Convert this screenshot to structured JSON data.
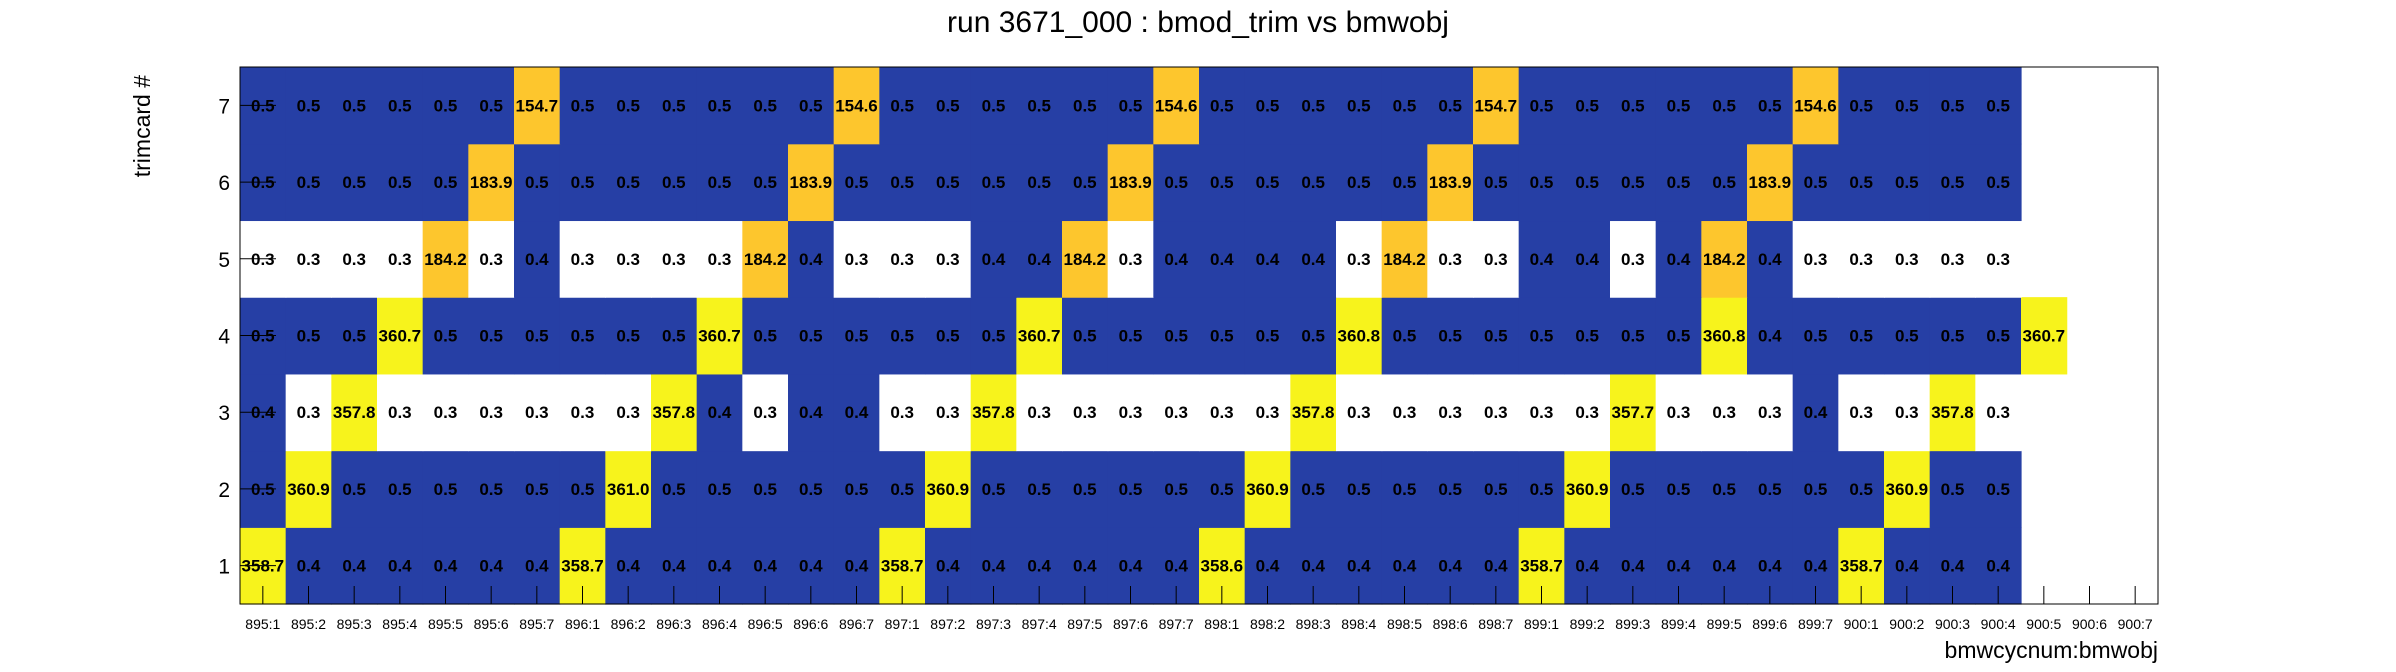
{
  "chart_data": {
    "type": "heatmap",
    "title": "run 3671_000 : bmod_trim vs bmwobj",
    "xlabel": "bmwcycnum:bmwobj",
    "ylabel": "trimcard #",
    "x_categories": [
      "895:1",
      "895:2",
      "895:3",
      "895:4",
      "895:5",
      "895:6",
      "895:7",
      "896:1",
      "896:2",
      "896:3",
      "896:4",
      "896:5",
      "896:6",
      "896:7",
      "897:1",
      "897:2",
      "897:3",
      "897:4",
      "897:5",
      "897:6",
      "897:7",
      "898:1",
      "898:2",
      "898:3",
      "898:4",
      "898:5",
      "898:6",
      "898:7",
      "899:1",
      "899:2",
      "899:3",
      "899:4",
      "899:5",
      "899:6",
      "899:7",
      "900:1",
      "900:2",
      "900:3",
      "900:4",
      "900:5",
      "900:6",
      "900:7"
    ],
    "y_categories": [
      "1",
      "2",
      "3",
      "4",
      "5",
      "6",
      "7"
    ],
    "values": [
      [
        358.7,
        0.4,
        0.4,
        0.4,
        0.4,
        0.4,
        0.4,
        358.7,
        0.4,
        0.4,
        0.4,
        0.4,
        0.4,
        0.4,
        358.7,
        0.4,
        0.4,
        0.4,
        0.4,
        0.4,
        0.4,
        358.6,
        0.4,
        0.4,
        0.4,
        0.4,
        0.4,
        0.4,
        358.7,
        0.4,
        0.4,
        0.4,
        0.4,
        0.4,
        0.4,
        358.7,
        0.4,
        0.4,
        0.4,
        null,
        null,
        null
      ],
      [
        0.5,
        360.9,
        0.5,
        0.5,
        0.5,
        0.5,
        0.5,
        0.5,
        361.0,
        0.5,
        0.5,
        0.5,
        0.5,
        0.5,
        0.5,
        360.9,
        0.5,
        0.5,
        0.5,
        0.5,
        0.5,
        0.5,
        360.9,
        0.5,
        0.5,
        0.5,
        0.5,
        0.5,
        0.5,
        360.9,
        0.5,
        0.5,
        0.5,
        0.5,
        0.5,
        0.5,
        360.9,
        0.5,
        0.5,
        null,
        null,
        null
      ],
      [
        0.4,
        0.3,
        357.8,
        0.3,
        0.3,
        0.3,
        0.3,
        0.3,
        0.3,
        357.8,
        0.4,
        0.3,
        0.4,
        0.4,
        0.3,
        0.3,
        357.8,
        0.3,
        0.3,
        0.3,
        0.3,
        0.3,
        0.3,
        357.8,
        0.3,
        0.3,
        0.3,
        0.3,
        0.3,
        0.3,
        357.7,
        0.3,
        0.3,
        0.3,
        0.4,
        0.3,
        0.3,
        357.8,
        0.3,
        null,
        null,
        null
      ],
      [
        0.5,
        0.5,
        0.5,
        360.7,
        0.5,
        0.5,
        0.5,
        0.5,
        0.5,
        0.5,
        360.7,
        0.5,
        0.5,
        0.5,
        0.5,
        0.5,
        0.5,
        360.7,
        0.5,
        0.5,
        0.5,
        0.5,
        0.5,
        0.5,
        360.8,
        0.5,
        0.5,
        0.5,
        0.5,
        0.5,
        0.5,
        0.5,
        360.8,
        0.4,
        0.5,
        0.5,
        0.5,
        0.5,
        0.5,
        360.7,
        null,
        null
      ],
      [
        0.3,
        0.3,
        0.3,
        0.3,
        184.2,
        0.3,
        0.4,
        0.3,
        0.3,
        0.3,
        0.3,
        184.2,
        0.4,
        0.3,
        0.3,
        0.3,
        0.4,
        0.4,
        184.2,
        0.3,
        0.4,
        0.4,
        0.4,
        0.4,
        0.3,
        184.2,
        0.3,
        0.3,
        0.4,
        0.4,
        0.3,
        0.4,
        184.2,
        0.4,
        0.3,
        0.3,
        0.3,
        0.3,
        0.3,
        null,
        null,
        null
      ],
      [
        0.5,
        0.5,
        0.5,
        0.5,
        0.5,
        183.9,
        0.5,
        0.5,
        0.5,
        0.5,
        0.5,
        0.5,
        183.9,
        0.5,
        0.5,
        0.5,
        0.5,
        0.5,
        0.5,
        183.9,
        0.5,
        0.5,
        0.5,
        0.5,
        0.5,
        0.5,
        183.9,
        0.5,
        0.5,
        0.5,
        0.5,
        0.5,
        0.5,
        183.9,
        0.5,
        0.5,
        0.5,
        0.5,
        0.5,
        null,
        null,
        null
      ],
      [
        0.5,
        0.5,
        0.5,
        0.5,
        0.5,
        0.5,
        154.7,
        0.5,
        0.5,
        0.5,
        0.5,
        0.5,
        0.5,
        154.6,
        0.5,
        0.5,
        0.5,
        0.5,
        0.5,
        0.5,
        154.6,
        0.5,
        0.5,
        0.5,
        0.5,
        0.5,
        0.5,
        154.7,
        0.5,
        0.5,
        0.5,
        0.5,
        0.5,
        0.5,
        154.6,
        0.5,
        0.5,
        0.5,
        0.5,
        null,
        null,
        null
      ]
    ],
    "value_labels": [
      [
        "358.7",
        "0.4",
        "0.4",
        "0.4",
        "0.4",
        "0.4",
        "0.4",
        "358.7",
        "0.4",
        "0.4",
        "0.4",
        "0.4",
        "0.4",
        "0.4",
        "358.7",
        "0.4",
        "0.4",
        "0.4",
        "0.4",
        "0.4",
        "0.4",
        "358.6",
        "0.4",
        "0.4",
        "0.4",
        "0.4",
        "0.4",
        "0.4",
        "358.7",
        "0.4",
        "0.4",
        "0.4",
        "0.4",
        "0.4",
        "0.4",
        "358.7",
        "0.4",
        "0.4",
        "0.4",
        "",
        "",
        ""
      ],
      [
        "0.5",
        "360.9",
        "0.5",
        "0.5",
        "0.5",
        "0.5",
        "0.5",
        "0.5",
        "361.0",
        "0.5",
        "0.5",
        "0.5",
        "0.5",
        "0.5",
        "0.5",
        "360.9",
        "0.5",
        "0.5",
        "0.5",
        "0.5",
        "0.5",
        "0.5",
        "360.9",
        "0.5",
        "0.5",
        "0.5",
        "0.5",
        "0.5",
        "0.5",
        "360.9",
        "0.5",
        "0.5",
        "0.5",
        "0.5",
        "0.5",
        "0.5",
        "360.9",
        "0.5",
        "0.5",
        "",
        "",
        ""
      ],
      [
        "0.4",
        "0.3",
        "357.8",
        "0.3",
        "0.3",
        "0.3",
        "0.3",
        "0.3",
        "0.3",
        "357.8",
        "0.4",
        "0.3",
        "0.4",
        "0.4",
        "0.3",
        "0.3",
        "357.8",
        "0.3",
        "0.3",
        "0.3",
        "0.3",
        "0.3",
        "0.3",
        "357.8",
        "0.3",
        "0.3",
        "0.3",
        "0.3",
        "0.3",
        "0.3",
        "357.7",
        "0.3",
        "0.3",
        "0.3",
        "0.4",
        "0.3",
        "0.3",
        "357.8",
        "0.3",
        "",
        "",
        ""
      ],
      [
        "0.5",
        "0.5",
        "0.5",
        "360.7",
        "0.5",
        "0.5",
        "0.5",
        "0.5",
        "0.5",
        "0.5",
        "360.7",
        "0.5",
        "0.5",
        "0.5",
        "0.5",
        "0.5",
        "0.5",
        "360.7",
        "0.5",
        "0.5",
        "0.5",
        "0.5",
        "0.5",
        "0.5",
        "360.8",
        "0.5",
        "0.5",
        "0.5",
        "0.5",
        "0.5",
        "0.5",
        "0.5",
        "360.8",
        "0.4",
        "0.5",
        "0.5",
        "0.5",
        "0.5",
        "0.5",
        "360.7",
        "",
        ""
      ],
      [
        "0.3",
        "0.3",
        "0.3",
        "0.3",
        "184.2",
        "0.3",
        "0.4",
        "0.3",
        "0.3",
        "0.3",
        "0.3",
        "184.2",
        "0.4",
        "0.3",
        "0.3",
        "0.3",
        "0.4",
        "0.4",
        "184.2",
        "0.3",
        "0.4",
        "0.4",
        "0.4",
        "0.4",
        "0.3",
        "184.2",
        "0.3",
        "0.3",
        "0.4",
        "0.4",
        "0.3",
        "0.4",
        "184.2",
        "0.4",
        "0.3",
        "0.3",
        "0.3",
        "0.3",
        "0.3",
        "",
        "",
        ""
      ],
      [
        "0.5",
        "0.5",
        "0.5",
        "0.5",
        "0.5",
        "183.9",
        "0.5",
        "0.5",
        "0.5",
        "0.5",
        "0.5",
        "0.5",
        "183.9",
        "0.5",
        "0.5",
        "0.5",
        "0.5",
        "0.5",
        "0.5",
        "183.9",
        "0.5",
        "0.5",
        "0.5",
        "0.5",
        "0.5",
        "0.5",
        "183.9",
        "0.5",
        "0.5",
        "0.5",
        "0.5",
        "0.5",
        "0.5",
        "183.9",
        "0.5",
        "0.5",
        "0.5",
        "0.5",
        "0.5",
        "",
        "",
        ""
      ],
      [
        "0.5",
        "0.5",
        "0.5",
        "0.5",
        "0.5",
        "0.5",
        "154.7",
        "0.5",
        "0.5",
        "0.5",
        "0.5",
        "0.5",
        "0.5",
        "154.6",
        "0.5",
        "0.5",
        "0.5",
        "0.5",
        "0.5",
        "0.5",
        "154.6",
        "0.5",
        "0.5",
        "0.5",
        "0.5",
        "0.5",
        "0.5",
        "154.7",
        "0.5",
        "0.5",
        "0.5",
        "0.5",
        "0.5",
        "0.5",
        "154.6",
        "0.5",
        "0.5",
        "0.5",
        "0.5",
        "",
        "",
        ""
      ]
    ],
    "legend": "none",
    "grid": false
  },
  "colors": {
    "low": "#263fa5",
    "zero_band": "#ffffff",
    "mid": "#fdc62d",
    "high": "#f7f31c",
    "frame": "#000000"
  }
}
